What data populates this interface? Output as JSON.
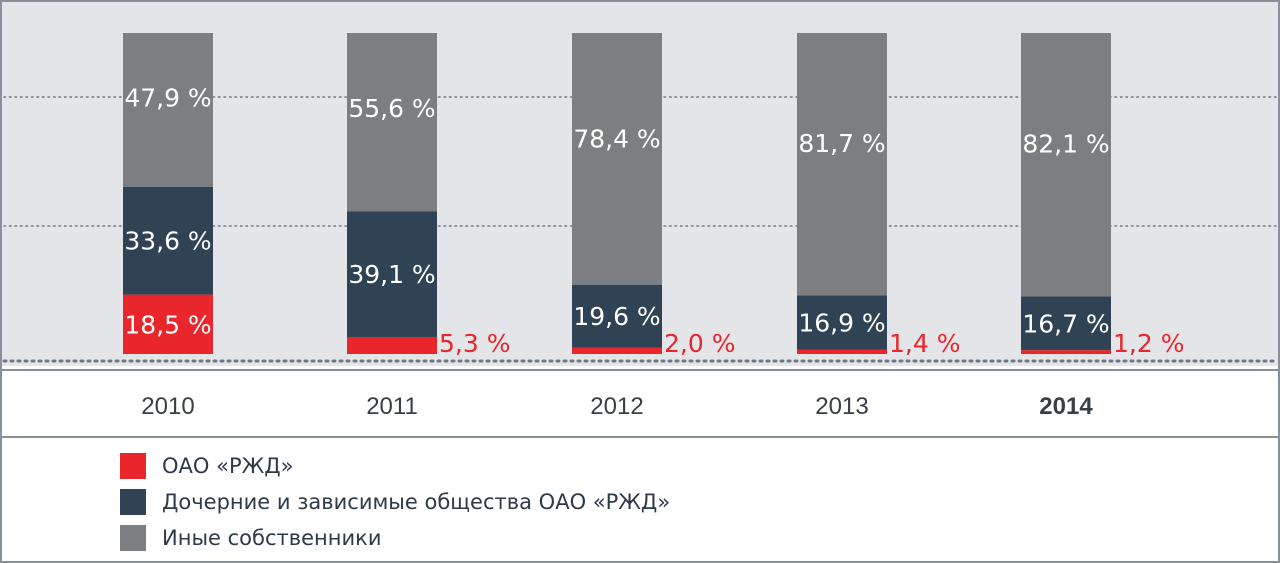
{
  "chart_data": {
    "type": "bar",
    "stacked": true,
    "categories": [
      "2010",
      "2011",
      "2012",
      "2013",
      "2014"
    ],
    "highlight_category": "2014",
    "series": [
      {
        "name": "ОАО «РЖД»",
        "color": "#e8262b",
        "values": [
          18.5,
          5.3,
          2.0,
          1.4,
          1.2
        ],
        "labels": [
          "18,5 %",
          "5,3 %",
          "2,0 %",
          "1,4 %",
          "1,2 %"
        ]
      },
      {
        "name": "Дочерние и зависимые общества ОАО «РЖД»",
        "color": "#304354",
        "values": [
          33.6,
          39.1,
          19.6,
          16.9,
          16.7
        ],
        "labels": [
          "33,6 %",
          "39,1 %",
          "19,6 %",
          "16,9 %",
          "16,7 %"
        ]
      },
      {
        "name": "Иные собственники",
        "color": "#7d7e81",
        "values": [
          47.9,
          55.6,
          78.4,
          81.7,
          82.1
        ],
        "labels": [
          "47,9 %",
          "55,6 %",
          "78,4 %",
          "81,7 %",
          "82,1 %"
        ]
      }
    ],
    "ylim": [
      0,
      100
    ],
    "grid": true,
    "legend_placement": "bottom-left",
    "colors": {
      "plot_background": "#e4e5e8",
      "gridline": "#6f7885",
      "border": "#8a9099",
      "axis_text": "#3a3f47"
    }
  }
}
